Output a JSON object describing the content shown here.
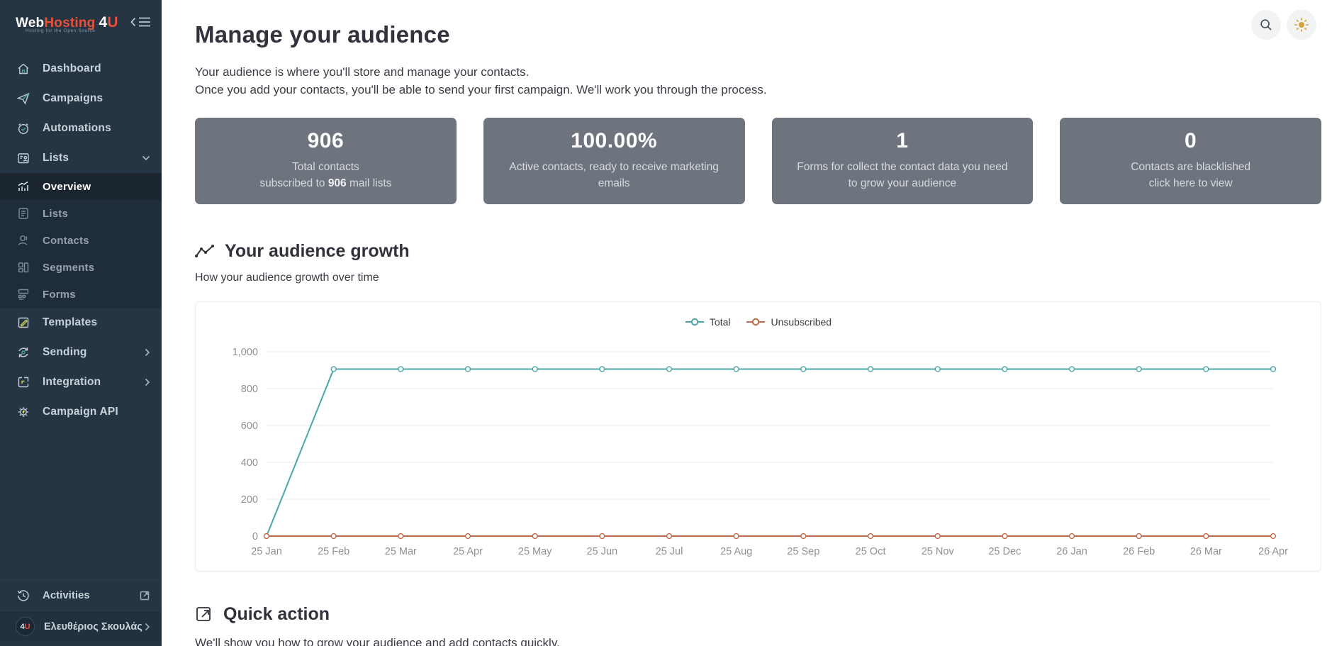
{
  "colors": {
    "sidebar_bg": "#253544",
    "accent_teal": "#4ba6a6",
    "accent_orange": "#bf6a4b",
    "logo_red": "#e8503a",
    "card_gray": "#6d747e",
    "sun_gold": "#d7a33d"
  },
  "sidebar": {
    "logo": {
      "part1": "Web",
      "part2": "Hosting",
      "badge_4": "4",
      "badge_u": "U",
      "tagline": "Hosting for the Open Source"
    },
    "items": [
      {
        "label": "Dashboard"
      },
      {
        "label": "Campaigns"
      },
      {
        "label": "Automations"
      },
      {
        "label": "Lists"
      },
      {
        "label": "Overview"
      },
      {
        "label": "Lists"
      },
      {
        "label": "Contacts"
      },
      {
        "label": "Segments"
      },
      {
        "label": "Forms"
      },
      {
        "label": "Templates"
      },
      {
        "label": "Sending"
      },
      {
        "label": "Integration"
      },
      {
        "label": "Campaign API"
      }
    ],
    "activities_label": "Activities",
    "user_name": "Ελευθέριος Σκουλάς"
  },
  "header": {
    "title": "Manage your audience",
    "description_line1": "Your audience is where you'll store and manage your contacts.",
    "description_line2": "Once you add your contacts, you'll be able to send your first campaign. We'll work you through the process."
  },
  "stat_cards": [
    {
      "value": "906",
      "line1": "Total contacts",
      "line2_pre": "subscribed to ",
      "line2_strong": "906",
      "line2_post": " mail lists"
    },
    {
      "value": "100.00%",
      "line1": "Active contacts, ready to receive marketing",
      "line2": "emails"
    },
    {
      "value": "1",
      "line1": "Forms for collect the contact data you need",
      "line2": "to grow your audience"
    },
    {
      "value": "0",
      "line1": "Contacts are blacklished",
      "line2": "click here to view"
    }
  ],
  "growth_section": {
    "title": "Your audience growth",
    "subtitle": "How your audience growth over time"
  },
  "quick_action": {
    "title": "Quick action",
    "description": "We'll show you how to grow your audience and add contacts quickly."
  },
  "chart_data": {
    "type": "line",
    "x": [
      "25 Jan",
      "25 Feb",
      "25 Mar",
      "25 Apr",
      "25 May",
      "25 Jun",
      "25 Jul",
      "25 Aug",
      "25 Sep",
      "25 Oct",
      "25 Nov",
      "25 Dec",
      "26 Jan",
      "26 Feb",
      "26 Mar",
      "26 Apr"
    ],
    "series": [
      {
        "name": "Total",
        "color": "#4ba6a6",
        "values": [
          0,
          906,
          906,
          906,
          906,
          906,
          906,
          906,
          906,
          906,
          906,
          906,
          906,
          906,
          906,
          906
        ]
      },
      {
        "name": "Unsubscribed",
        "color": "#bf6a4b",
        "values": [
          0,
          0,
          0,
          0,
          0,
          0,
          0,
          0,
          0,
          0,
          0,
          0,
          0,
          0,
          0,
          0
        ]
      }
    ],
    "ylim": [
      0,
      1000
    ],
    "yticks": [
      0,
      200,
      400,
      600,
      800,
      1000
    ],
    "ytick_labels": [
      "0",
      "200",
      "400",
      "600",
      "800",
      "1,000"
    ],
    "legend_position": "top-center",
    "grid": true
  }
}
